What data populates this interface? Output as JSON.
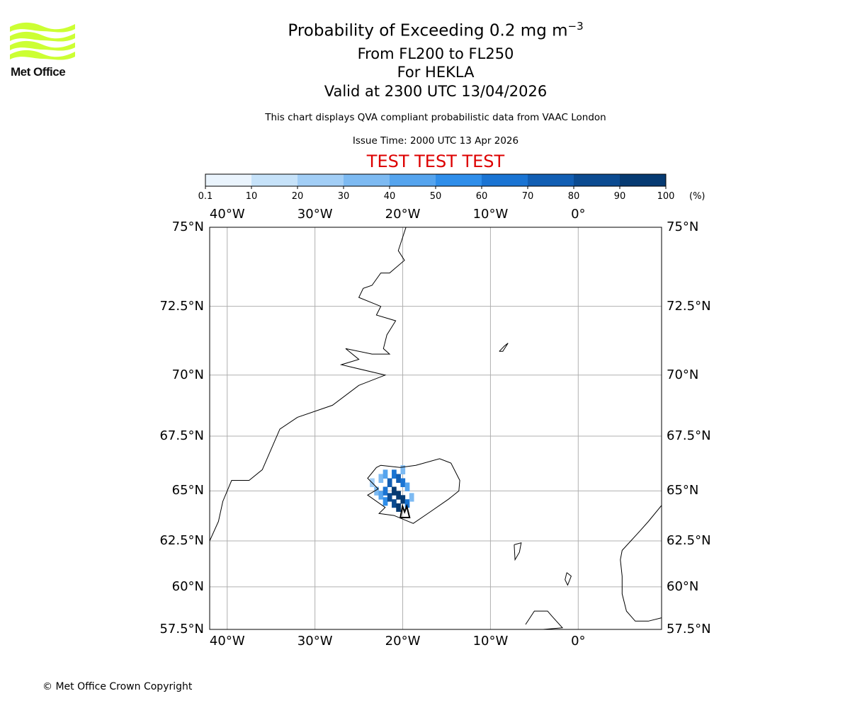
{
  "header": {
    "title_base": "Probability of Exceeding 0.2 mg m",
    "title_exp": "−3",
    "subtitle_levels": "From FL200 to FL250",
    "subtitle_volcano": "For HEKLA",
    "subtitle_valid": "Valid at 2300 UTC 13/04/2026",
    "disclaimer": "This chart displays QVA compliant probabilistic data from VAAC London",
    "issue_time": "Issue Time: 2000 UTC 13 Apr 2026",
    "test_banner": "TEST TEST TEST"
  },
  "logo": {
    "text": "Met Office",
    "color": "#ccff33"
  },
  "colorbar": {
    "ticks": [
      "0.1",
      "10",
      "20",
      "30",
      "40",
      "50",
      "60",
      "70",
      "80",
      "90",
      "100"
    ],
    "unit": "(%)",
    "colors": [
      "#eaf4fd",
      "#c6e2f9",
      "#a2cef6",
      "#7dbaf2",
      "#55a4ee",
      "#2f8eea",
      "#1a74d3",
      "#125eb3",
      "#0b4b91",
      "#063a72",
      "#022a55"
    ]
  },
  "map": {
    "lat_labels": [
      "75°N",
      "72.5°N",
      "70°N",
      "67.5°N",
      "65°N",
      "62.5°N",
      "60°N",
      "57.5°N"
    ],
    "lon_labels": [
      "40°W",
      "30°W",
      "20°W",
      "10°W",
      "0°"
    ],
    "extent": {
      "lon_min": -42,
      "lon_max": 9.5,
      "lat_min": 57.5,
      "lat_max": 75
    },
    "plume_cells": [
      {
        "lon": -23.5,
        "lat": 65.4,
        "prob": 20
      },
      {
        "lon": -23.0,
        "lat": 65.0,
        "prob": 30
      },
      {
        "lon": -22.5,
        "lat": 65.6,
        "prob": 30
      },
      {
        "lon": -22.5,
        "lat": 64.8,
        "prob": 40
      },
      {
        "lon": -22.0,
        "lat": 65.8,
        "prob": 40
      },
      {
        "lon": -22.0,
        "lat": 65.0,
        "prob": 60
      },
      {
        "lon": -22.0,
        "lat": 64.5,
        "prob": 50
      },
      {
        "lon": -21.5,
        "lat": 65.4,
        "prob": 70
      },
      {
        "lon": -21.5,
        "lat": 64.7,
        "prob": 80
      },
      {
        "lon": -21.0,
        "lat": 65.8,
        "prob": 60
      },
      {
        "lon": -21.0,
        "lat": 65.0,
        "prob": 90
      },
      {
        "lon": -21.0,
        "lat": 64.4,
        "prob": 80
      },
      {
        "lon": -20.5,
        "lat": 65.6,
        "prob": 70
      },
      {
        "lon": -20.5,
        "lat": 64.8,
        "prob": 100
      },
      {
        "lon": -20.5,
        "lat": 64.2,
        "prob": 90
      },
      {
        "lon": -20.0,
        "lat": 66.0,
        "prob": 30
      },
      {
        "lon": -20.0,
        "lat": 65.4,
        "prob": 60
      },
      {
        "lon": -20.0,
        "lat": 64.6,
        "prob": 90
      },
      {
        "lon": -19.5,
        "lat": 65.2,
        "prob": 40
      },
      {
        "lon": -19.5,
        "lat": 64.4,
        "prob": 60
      },
      {
        "lon": -19.0,
        "lat": 64.7,
        "prob": 30
      }
    ]
  },
  "footer": {
    "copyright": "© Met Office Crown Copyright"
  }
}
